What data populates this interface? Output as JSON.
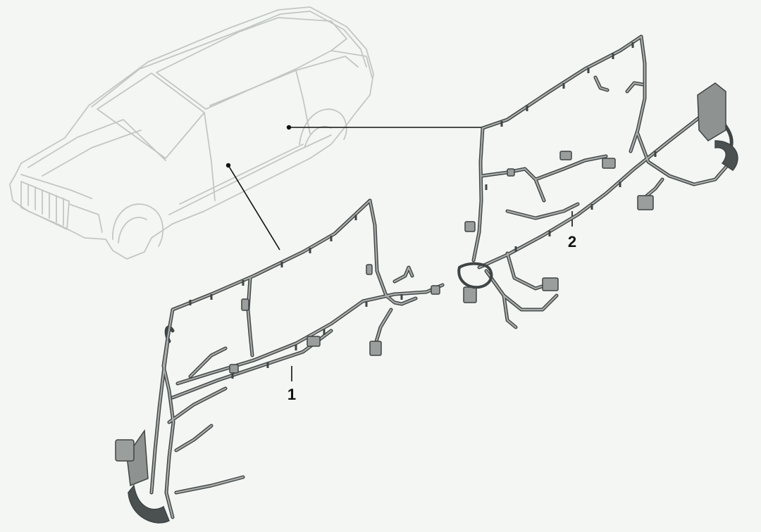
{
  "diagram": {
    "callouts": [
      {
        "id": "1",
        "label": "1"
      },
      {
        "id": "2",
        "label": "2"
      }
    ],
    "colors": {
      "background": "#f3f6f3",
      "car_outline": "#c2c7c6",
      "wire_outer": "#3f4444",
      "wire_inner": "#a9adab",
      "connector": "#9a9e9c",
      "leader_line": "#111111"
    }
  }
}
